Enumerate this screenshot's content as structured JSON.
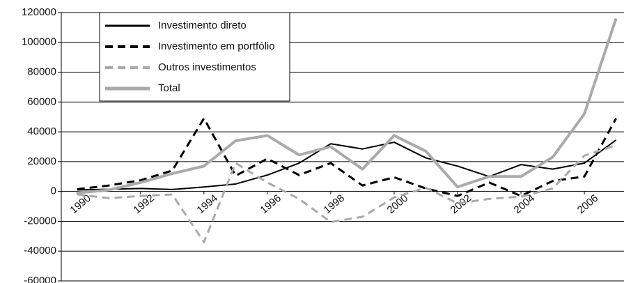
{
  "chart_data": {
    "type": "line",
    "x": [
      1990,
      1991,
      1992,
      1993,
      1994,
      1995,
      1996,
      1997,
      1998,
      1999,
      2000,
      2001,
      2002,
      2003,
      2004,
      2005,
      2006,
      2007
    ],
    "xlim": [
      1989.5,
      2007.25
    ],
    "xticks": [
      1990,
      1992,
      1994,
      1996,
      1998,
      2000,
      2002,
      2004,
      2006
    ],
    "ylim": [
      -60000,
      120000
    ],
    "yticks": [
      -60000,
      -40000,
      -20000,
      0,
      20000,
      40000,
      60000,
      80000,
      100000,
      120000
    ],
    "grid": true,
    "legend": "upper left",
    "series": [
      {
        "name": "Investimento direto",
        "color": "#000000",
        "style": "solid",
        "values": [
          1000,
          1500,
          2000,
          1300,
          3000,
          5000,
          11000,
          19000,
          32000,
          28500,
          33000,
          22500,
          17000,
          10000,
          18000,
          15000,
          19000,
          34500
        ]
      },
      {
        "name": "Investimento em portfólio",
        "color": "#000000",
        "style": "dashed",
        "values": [
          1500,
          4000,
          7500,
          14000,
          49000,
          10500,
          22000,
          11000,
          19000,
          4000,
          9500,
          2000,
          -3000,
          6000,
          -3000,
          7000,
          10000,
          49000
        ]
      },
      {
        "name": "Outros investimentos",
        "color": "#aaaaaa",
        "style": "dashed",
        "values": [
          -2000,
          -4500,
          -3000,
          -2000,
          -34000,
          19000,
          6000,
          -5000,
          -20500,
          -17000,
          -4000,
          2500,
          -8000,
          -5000,
          -3500,
          2000,
          24000,
          31000
        ]
      },
      {
        "name": "Total",
        "color": "#aaaaaa",
        "style": "solid",
        "values": [
          -1000,
          1000,
          6000,
          12000,
          17000,
          34000,
          37500,
          24500,
          30000,
          15000,
          37500,
          27000,
          3000,
          10000,
          10000,
          23000,
          52000,
          116000
        ]
      }
    ]
  }
}
